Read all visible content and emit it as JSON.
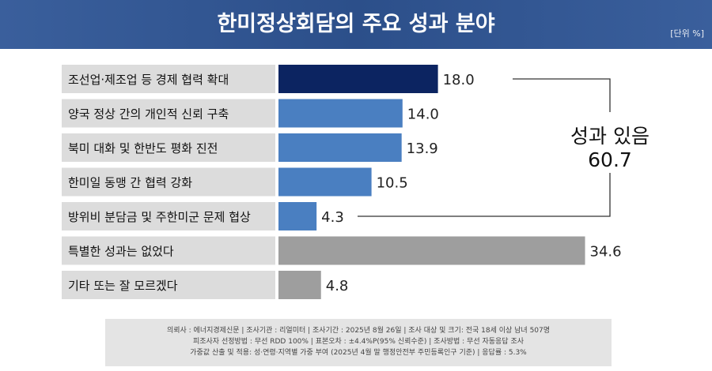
{
  "header": {
    "title": "한미정상회담의 주요 성과 분야",
    "unit": "[단위 %]"
  },
  "chart_data": {
    "type": "bar",
    "orientation": "horizontal",
    "title": "한미정상회담의 주요 성과 분야",
    "categories": [
      "조선업·제조업 등 경제 협력 확대",
      "양국 정상 간의 개인적 신뢰 구축",
      "북미 대화 및 한반도 평화 진전",
      "한미일 동맹 간 협력 강화",
      "방위비 분담금 및 주한미군 문제 협상",
      "특별한 성과는 없었다",
      "기타 또는 잘 모르겠다"
    ],
    "values": [
      18.0,
      14.0,
      13.9,
      10.5,
      4.3,
      34.6,
      4.8
    ],
    "value_labels": [
      "18.0",
      "14.0",
      "13.9",
      "10.5",
      "4.3",
      "34.6",
      "4.8"
    ],
    "bar_colors": [
      "#0c2461",
      "#4a7fc1",
      "#4a7fc1",
      "#4a7fc1",
      "#4a7fc1",
      "#9e9e9e",
      "#9e9e9e"
    ],
    "xlim": [
      0,
      40
    ],
    "annotation": {
      "label": "성과 있음",
      "value": "60.7",
      "groups_categories": [
        0,
        1,
        2,
        3,
        4
      ]
    }
  },
  "footnote": {
    "line1": "의뢰사 : 에너지경제신문 | 조사기관 : 리얼미터 | 조사기간 : 2025년 8월 26일 | 조사 대상 및 크기: 전국 18세 이상 남녀 507명",
    "line2": "피조사자 선정방법 : 무선 RDD 100% | 표본오차 : ±4.4%P(95% 신뢰수준) | 조사방법 : 무선 자동응답 조사",
    "line3": "가중값 산출 및 적용: 성·연령·지역별 가중 부여 (2025년 4월 말 행정안전부 주민등록인구 기준) | 응답률 : 5.3%"
  }
}
